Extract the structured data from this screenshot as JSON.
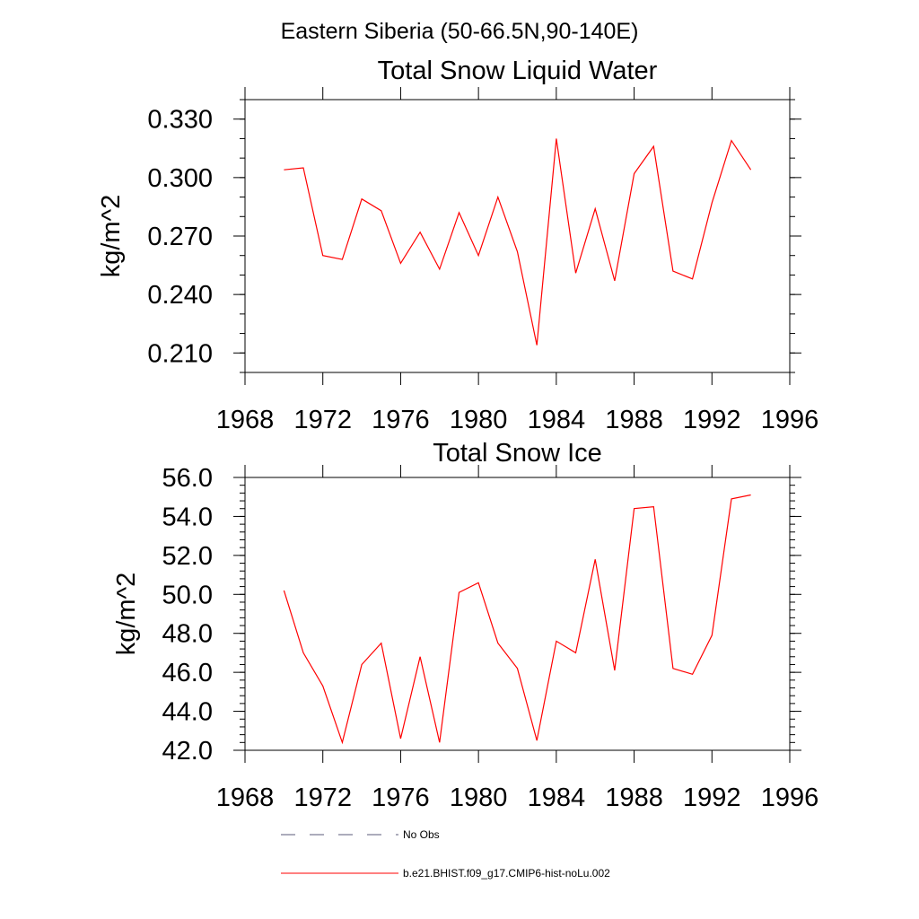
{
  "header": {
    "region_title": "Eastern Siberia (50-66.5N,90-140E)"
  },
  "chart_data": [
    {
      "type": "line",
      "title": "Total Snow Liquid Water",
      "xlabel": "",
      "ylabel": "kg/m^2",
      "xlim": [
        1968,
        1996
      ],
      "ylim": [
        0.2,
        0.34
      ],
      "xticks": [
        1968,
        1972,
        1976,
        1980,
        1984,
        1988,
        1992,
        1996
      ],
      "xtick_labels": [
        "1968",
        "1972",
        "1976",
        "1980",
        "1984",
        "1988",
        "1992",
        "1996"
      ],
      "yticks": [
        0.21,
        0.24,
        0.27,
        0.3,
        0.33
      ],
      "ytick_labels": [
        "0.210",
        "0.240",
        "0.270",
        "0.300",
        "0.330"
      ],
      "grid": false,
      "series": [
        {
          "name": "b.e21.BHIST.f09_g17.CMIP6-hist-noLu.002",
          "color": "#ff0000",
          "x": [
            1970,
            1971,
            1972,
            1973,
            1974,
            1975,
            1976,
            1977,
            1978,
            1979,
            1980,
            1981,
            1982,
            1983,
            1984,
            1985,
            1986,
            1987,
            1988,
            1989,
            1990,
            1991,
            1992,
            1993,
            1994
          ],
          "values": [
            0.304,
            0.305,
            0.26,
            0.258,
            0.289,
            0.283,
            0.256,
            0.272,
            0.253,
            0.282,
            0.26,
            0.29,
            0.262,
            0.214,
            0.32,
            0.251,
            0.284,
            0.247,
            0.302,
            0.316,
            0.252,
            0.248,
            0.287,
            0.319,
            0.304
          ]
        }
      ]
    },
    {
      "type": "line",
      "title": "Total Snow Ice",
      "xlabel": "",
      "ylabel": "kg/m^2",
      "xlim": [
        1968,
        1996
      ],
      "ylim": [
        42.0,
        56.0
      ],
      "xticks": [
        1968,
        1972,
        1976,
        1980,
        1984,
        1988,
        1992,
        1996
      ],
      "xtick_labels": [
        "1968",
        "1972",
        "1976",
        "1980",
        "1984",
        "1988",
        "1992",
        "1996"
      ],
      "yticks": [
        42,
        44,
        46,
        48,
        50,
        52,
        54,
        56
      ],
      "ytick_labels": [
        "42.0",
        "44.0",
        "46.0",
        "48.0",
        "50.0",
        "52.0",
        "54.0",
        "56.0"
      ],
      "grid": false,
      "series": [
        {
          "name": "b.e21.BHIST.f09_g17.CMIP6-hist-noLu.002",
          "color": "#ff0000",
          "x": [
            1970,
            1971,
            1972,
            1973,
            1974,
            1975,
            1976,
            1977,
            1978,
            1979,
            1980,
            1981,
            1982,
            1983,
            1984,
            1985,
            1986,
            1987,
            1988,
            1989,
            1990,
            1991,
            1992,
            1993,
            1994
          ],
          "values": [
            50.2,
            47.0,
            45.3,
            42.4,
            46.4,
            47.5,
            42.6,
            46.8,
            42.4,
            50.1,
            50.6,
            47.5,
            46.2,
            42.5,
            47.6,
            47.0,
            51.8,
            46.1,
            54.4,
            54.5,
            46.2,
            45.9,
            47.9,
            54.9,
            55.1
          ]
        }
      ]
    }
  ],
  "legend": {
    "placement": "bottom",
    "entries": [
      {
        "label": "No Obs",
        "style": "dashed",
        "color": "#5a5a78"
      },
      {
        "label": "b.e21.BHIST.f09_g17.CMIP6-hist-noLu.002",
        "style": "solid",
        "color": "#ff0000"
      }
    ]
  }
}
